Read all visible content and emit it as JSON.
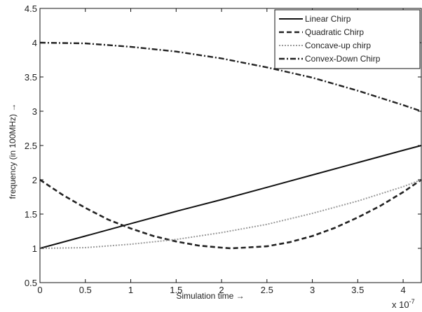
{
  "chart_data": {
    "type": "line",
    "xlabel": "Simulation time →",
    "ylabel": "frequency (in 100MHz) →",
    "x_exponent_label": "x 10",
    "x_exponent_sup": "-7",
    "xlim": [
      0,
      4.2
    ],
    "ylim": [
      0.5,
      4.5
    ],
    "xticks": [
      0,
      0.5,
      1,
      1.5,
      2,
      2.5,
      3,
      3.5,
      4
    ],
    "xtick_labels": [
      "0",
      "0.5",
      "1",
      "1.5",
      "2",
      "2.5",
      "3",
      "3.5",
      "4"
    ],
    "yticks": [
      0.5,
      1,
      1.5,
      2,
      2.5,
      3,
      3.5,
      4,
      4.5
    ],
    "ytick_labels": [
      "0.5",
      "1",
      "1.5",
      "2",
      "2.5",
      "3",
      "3.5",
      "4",
      "4.5"
    ],
    "grid": false,
    "legend_position": "top-right",
    "series": [
      {
        "name": "Linear Chirp",
        "color": "#111111",
        "dash": "solid",
        "x": [
          0,
          0.5,
          1.0,
          1.5,
          2.0,
          2.5,
          3.0,
          3.5,
          4.0,
          4.2
        ],
        "y": [
          1.0,
          1.18,
          1.36,
          1.54,
          1.71,
          1.89,
          2.07,
          2.25,
          2.43,
          2.5
        ]
      },
      {
        "name": "Quadratic Chirp",
        "color": "#222222",
        "dash": "dashed",
        "x": [
          0,
          0.25,
          0.5,
          0.75,
          1.0,
          1.25,
          1.5,
          1.75,
          2.0,
          2.1,
          2.25,
          2.5,
          2.75,
          3.0,
          3.25,
          3.5,
          3.75,
          4.0,
          4.2
        ],
        "y": [
          2.0,
          1.78,
          1.59,
          1.42,
          1.29,
          1.18,
          1.1,
          1.04,
          1.01,
          1.0,
          1.01,
          1.03,
          1.09,
          1.18,
          1.3,
          1.45,
          1.62,
          1.82,
          2.0
        ]
      },
      {
        "name": "Concave-up chirp",
        "color": "#9a9a9a",
        "dash": "dotted",
        "x": [
          0,
          0.5,
          1.0,
          1.5,
          2.0,
          2.5,
          3.0,
          3.5,
          4.0,
          4.2
        ],
        "y": [
          1.0,
          1.01,
          1.06,
          1.13,
          1.23,
          1.35,
          1.51,
          1.69,
          1.9,
          2.0
        ]
      },
      {
        "name": "Convex-Down Chirp",
        "color": "#222222",
        "dash": "dashdot",
        "x": [
          0,
          0.5,
          1.0,
          1.5,
          2.0,
          2.5,
          3.0,
          3.5,
          4.0,
          4.2
        ],
        "y": [
          4.0,
          3.99,
          3.94,
          3.87,
          3.77,
          3.64,
          3.49,
          3.3,
          3.09,
          3.0
        ]
      }
    ]
  }
}
